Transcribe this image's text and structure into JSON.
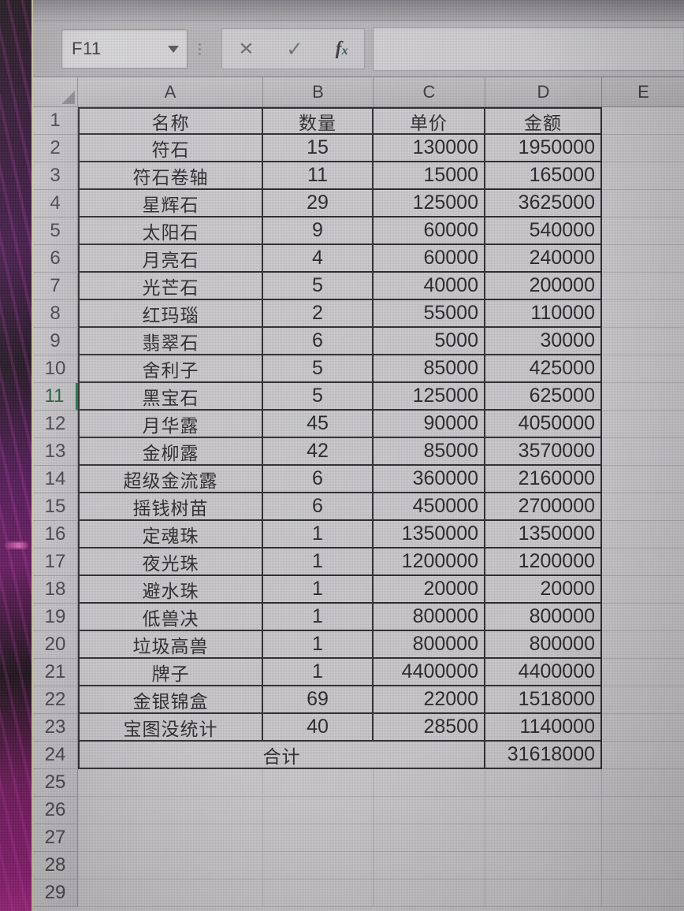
{
  "colors": {
    "accent_green": "#1f7246",
    "purple_edge": "#3a0e40",
    "magenta_streak": "#a0217e",
    "table_border": "#2e2c2e",
    "screen_gray": "#cdcbce"
  },
  "formula_bar": {
    "name_box_value": "F11",
    "cancel_label": "✕",
    "enter_label": "✓",
    "fx_f": "f",
    "fx_x": "x",
    "formula_value": ""
  },
  "grid": {
    "column_headers": [
      "A",
      "B",
      "C",
      "D",
      "E"
    ],
    "visible_rows": 29,
    "active_cell": "F11",
    "highlighted_row": 11
  },
  "sheet_table": {
    "header_row": 1,
    "columns": [
      "名称",
      "数量",
      "单价",
      "金额"
    ],
    "rows": [
      {
        "name": "符石",
        "qty": "15",
        "price": "130000",
        "amount": "1950000"
      },
      {
        "name": "符石卷轴",
        "qty": "11",
        "price": "15000",
        "amount": "165000"
      },
      {
        "name": "星辉石",
        "qty": "29",
        "price": "125000",
        "amount": "3625000"
      },
      {
        "name": "太阳石",
        "qty": "9",
        "price": "60000",
        "amount": "540000"
      },
      {
        "name": "月亮石",
        "qty": "4",
        "price": "60000",
        "amount": "240000"
      },
      {
        "name": "光芒石",
        "qty": "5",
        "price": "40000",
        "amount": "200000"
      },
      {
        "name": "红玛瑙",
        "qty": "2",
        "price": "55000",
        "amount": "110000"
      },
      {
        "name": "翡翠石",
        "qty": "6",
        "price": "5000",
        "amount": "30000"
      },
      {
        "name": "舍利子",
        "qty": "5",
        "price": "85000",
        "amount": "425000"
      },
      {
        "name": "黑宝石",
        "qty": "5",
        "price": "125000",
        "amount": "625000"
      },
      {
        "name": "月华露",
        "qty": "45",
        "price": "90000",
        "amount": "4050000"
      },
      {
        "name": "金柳露",
        "qty": "42",
        "price": "85000",
        "amount": "3570000"
      },
      {
        "name": "超级金流露",
        "qty": "6",
        "price": "360000",
        "amount": "2160000"
      },
      {
        "name": "摇钱树苗",
        "qty": "6",
        "price": "450000",
        "amount": "2700000"
      },
      {
        "name": "定魂珠",
        "qty": "1",
        "price": "1350000",
        "amount": "1350000"
      },
      {
        "name": "夜光珠",
        "qty": "1",
        "price": "1200000",
        "amount": "1200000"
      },
      {
        "name": "避水珠",
        "qty": "1",
        "price": "20000",
        "amount": "20000"
      },
      {
        "name": "低兽决",
        "qty": "1",
        "price": "800000",
        "amount": "800000"
      },
      {
        "name": "垃圾高兽",
        "qty": "1",
        "price": "800000",
        "amount": "800000"
      },
      {
        "name": "牌子",
        "qty": "1",
        "price": "4400000",
        "amount": "4400000"
      },
      {
        "name": "金银锦盒",
        "qty": "69",
        "price": "22000",
        "amount": "1518000"
      },
      {
        "name": "宝图没统计",
        "qty": "40",
        "price": "28500",
        "amount": "1140000"
      }
    ],
    "total_row": 24,
    "total_label": "合计",
    "total_amount": "31618000"
  }
}
